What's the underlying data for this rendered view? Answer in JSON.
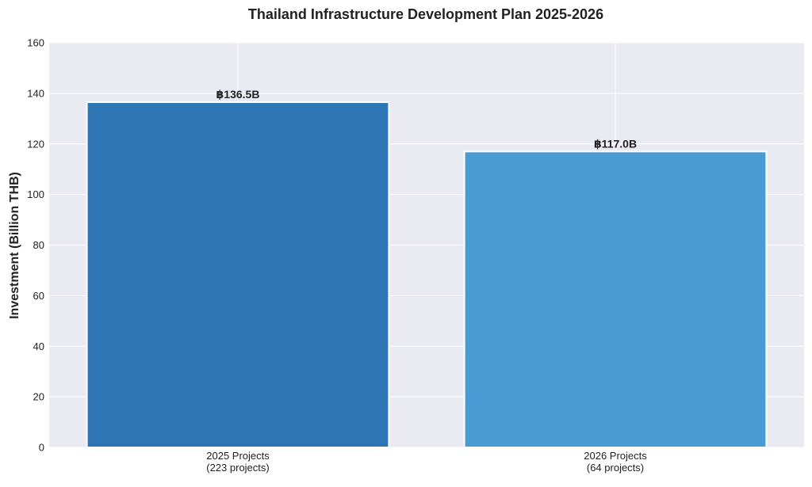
{
  "chart_data": {
    "type": "bar",
    "title": "Thailand Infrastructure Development Plan 2025-2026",
    "xlabel": "",
    "ylabel": "Investment (Billion THB)",
    "categories": [
      [
        "2025 Projects",
        "(223 projects)"
      ],
      [
        "2026 Projects",
        "(64 projects)"
      ]
    ],
    "values": [
      136.5,
      117.0
    ],
    "value_labels": [
      "฿136.5B",
      "฿117.0B"
    ],
    "ylim": [
      0,
      160
    ],
    "yticks": [
      0,
      20,
      40,
      60,
      80,
      100,
      120,
      140,
      160
    ],
    "grid": true,
    "colors": {
      "bars": [
        "#2e75b6",
        "#4a9bd3"
      ],
      "background": "#eaeaf2",
      "grid": "#ffffff",
      "bar_edge": "#ffffff"
    }
  }
}
